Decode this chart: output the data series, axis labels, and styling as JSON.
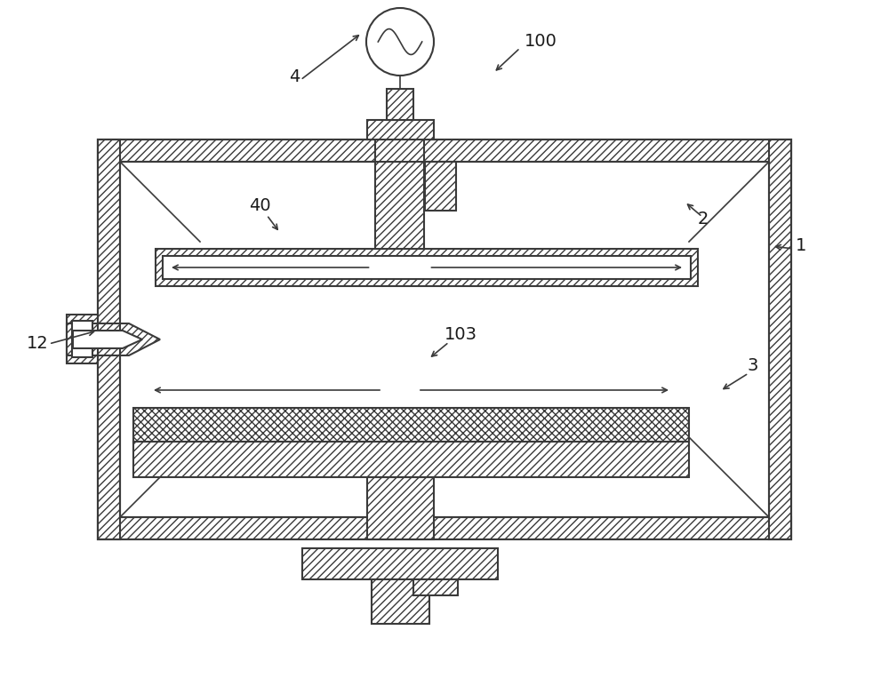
{
  "bg_color": "#ffffff",
  "line_color": "#3a3a3a",
  "lw": 1.5,
  "lw2": 1.2
}
